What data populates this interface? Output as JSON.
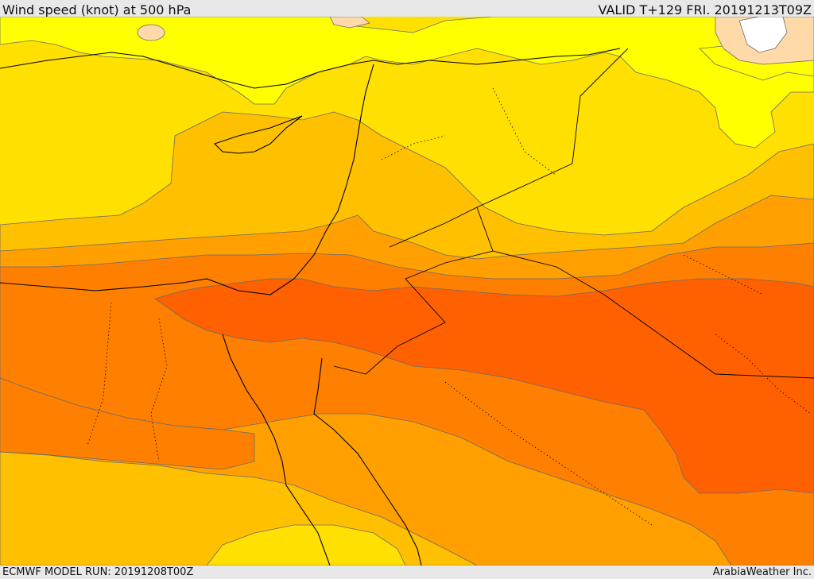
{
  "header": {
    "title": "Wind speed (knot) at 500 hPa",
    "valid": "VALID T+129 FRI. 20191213T09Z"
  },
  "footer": {
    "model_run": "ECMWF MODEL RUN: 20191208T00Z",
    "credit": "ArabiaWeather Inc."
  },
  "colors": {
    "light_yellow": "#ffff00",
    "yellow": "#ffe000",
    "gold": "#ffc000",
    "orange_light": "#ffa000",
    "orange": "#ff8000",
    "orange_red": "#ff6000",
    "peach": "#ffd9a8",
    "white": "#ffffff"
  }
}
